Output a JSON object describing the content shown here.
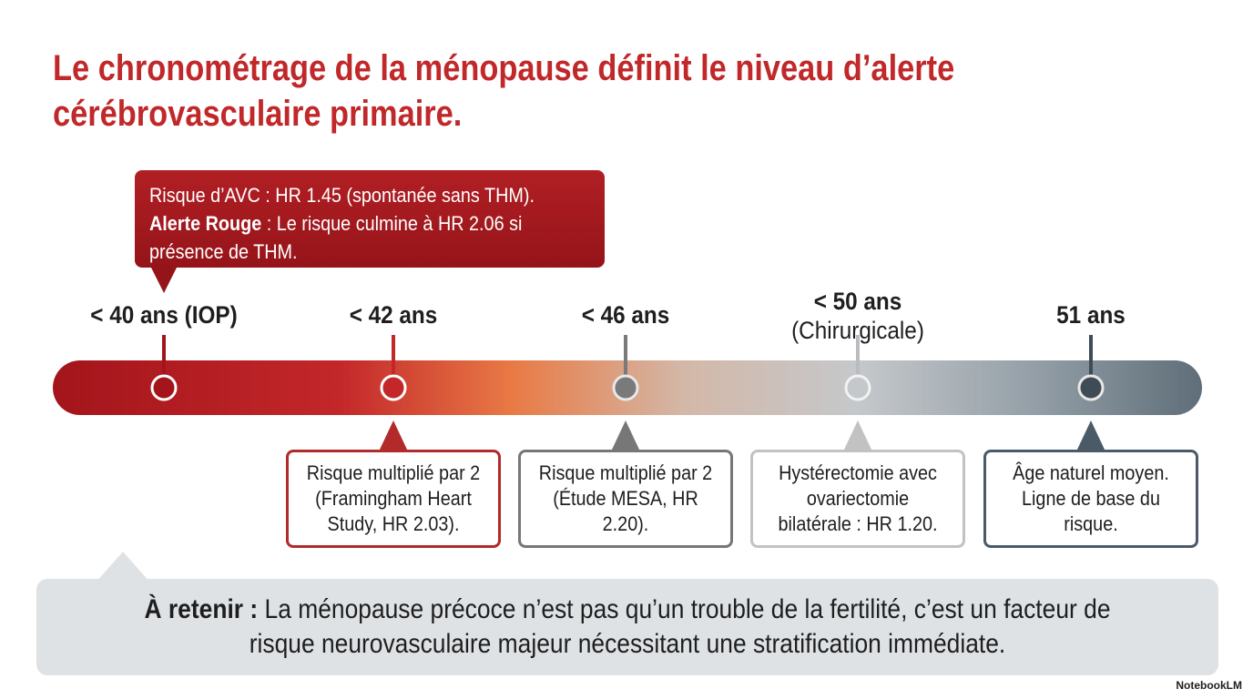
{
  "title": "Le chronométrage de la ménopause définit le niveau d’alerte cérébrovasculaire primaire.",
  "callout": {
    "line1": "Risque d’AVC : HR 1.45 (spontanée sans THM).",
    "emphasis": "Alerte Rouge",
    "rest": ": Le risque culmine à HR 2.06 si présence de THM."
  },
  "milestones": [
    {
      "label": "< 40 ans (IOP)"
    },
    {
      "label": "< 42 ans",
      "detail": "Risque multiplié par 2 (Framingham Heart Study, HR 2.03)."
    },
    {
      "label": "< 46 ans",
      "detail": "Risque multiplié par 2 (Étude MESA, HR 2.20)."
    },
    {
      "label": "< 50 ans",
      "sublabel": "(Chirurgicale)",
      "detail": "Hystérectomie avec ovariectomie bilatérale : HR 1.20."
    },
    {
      "label": "51 ans",
      "detail": "Âge naturel moyen. Ligne de base du risque."
    }
  ],
  "takeaway": {
    "emphasis": "À retenir :",
    "text": "La ménopause précoce n’est pas qu’un trouble de la fertilité, c’est un facteur de risque neurovasculaire majeur nécessitant une stratification immédiate."
  },
  "footer": "NotebookLM"
}
